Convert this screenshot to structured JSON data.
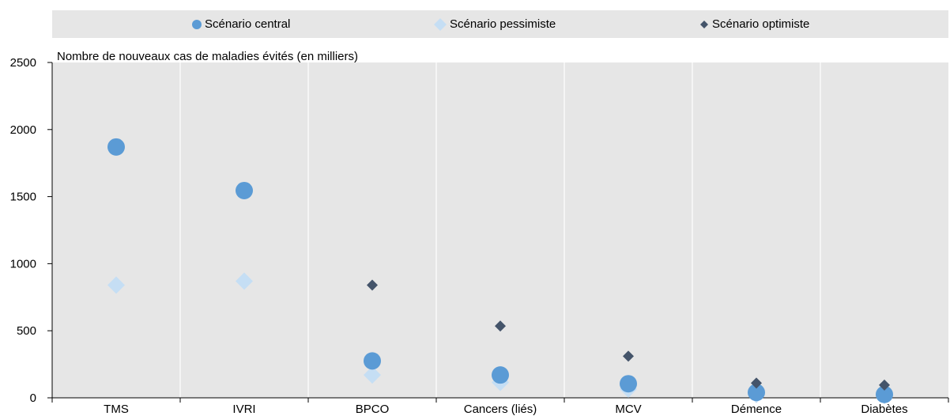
{
  "chart_data": {
    "type": "scatter",
    "title": "",
    "ylabel": "Nombre de nouveaux cas de maladies évités (en milliers)",
    "xlabel": "",
    "categories": [
      "TMS",
      "IVRI",
      "BPCO",
      "Cancers (liés)",
      "MCV",
      "Démence",
      "Diabètes"
    ],
    "ylim": [
      0,
      2500
    ],
    "yticks": [
      0,
      500,
      1000,
      1500,
      2000,
      2500
    ],
    "grid": "vertical",
    "legend_position": "top",
    "series": [
      {
        "name": "Scénario central",
        "marker": "circle",
        "color": "#5b9bd5",
        "values": [
          1870,
          1545,
          275,
          170,
          105,
          40,
          25
        ]
      },
      {
        "name": "Scénario pessimiste",
        "marker": "diamond",
        "color": "#c5def4",
        "values": [
          840,
          870,
          170,
          115,
          65,
          25,
          18
        ]
      },
      {
        "name": "Scénario optimiste",
        "marker": "small-diamond",
        "color": "#44546a",
        "values": [
          null,
          null,
          840,
          535,
          310,
          110,
          95
        ]
      }
    ]
  }
}
